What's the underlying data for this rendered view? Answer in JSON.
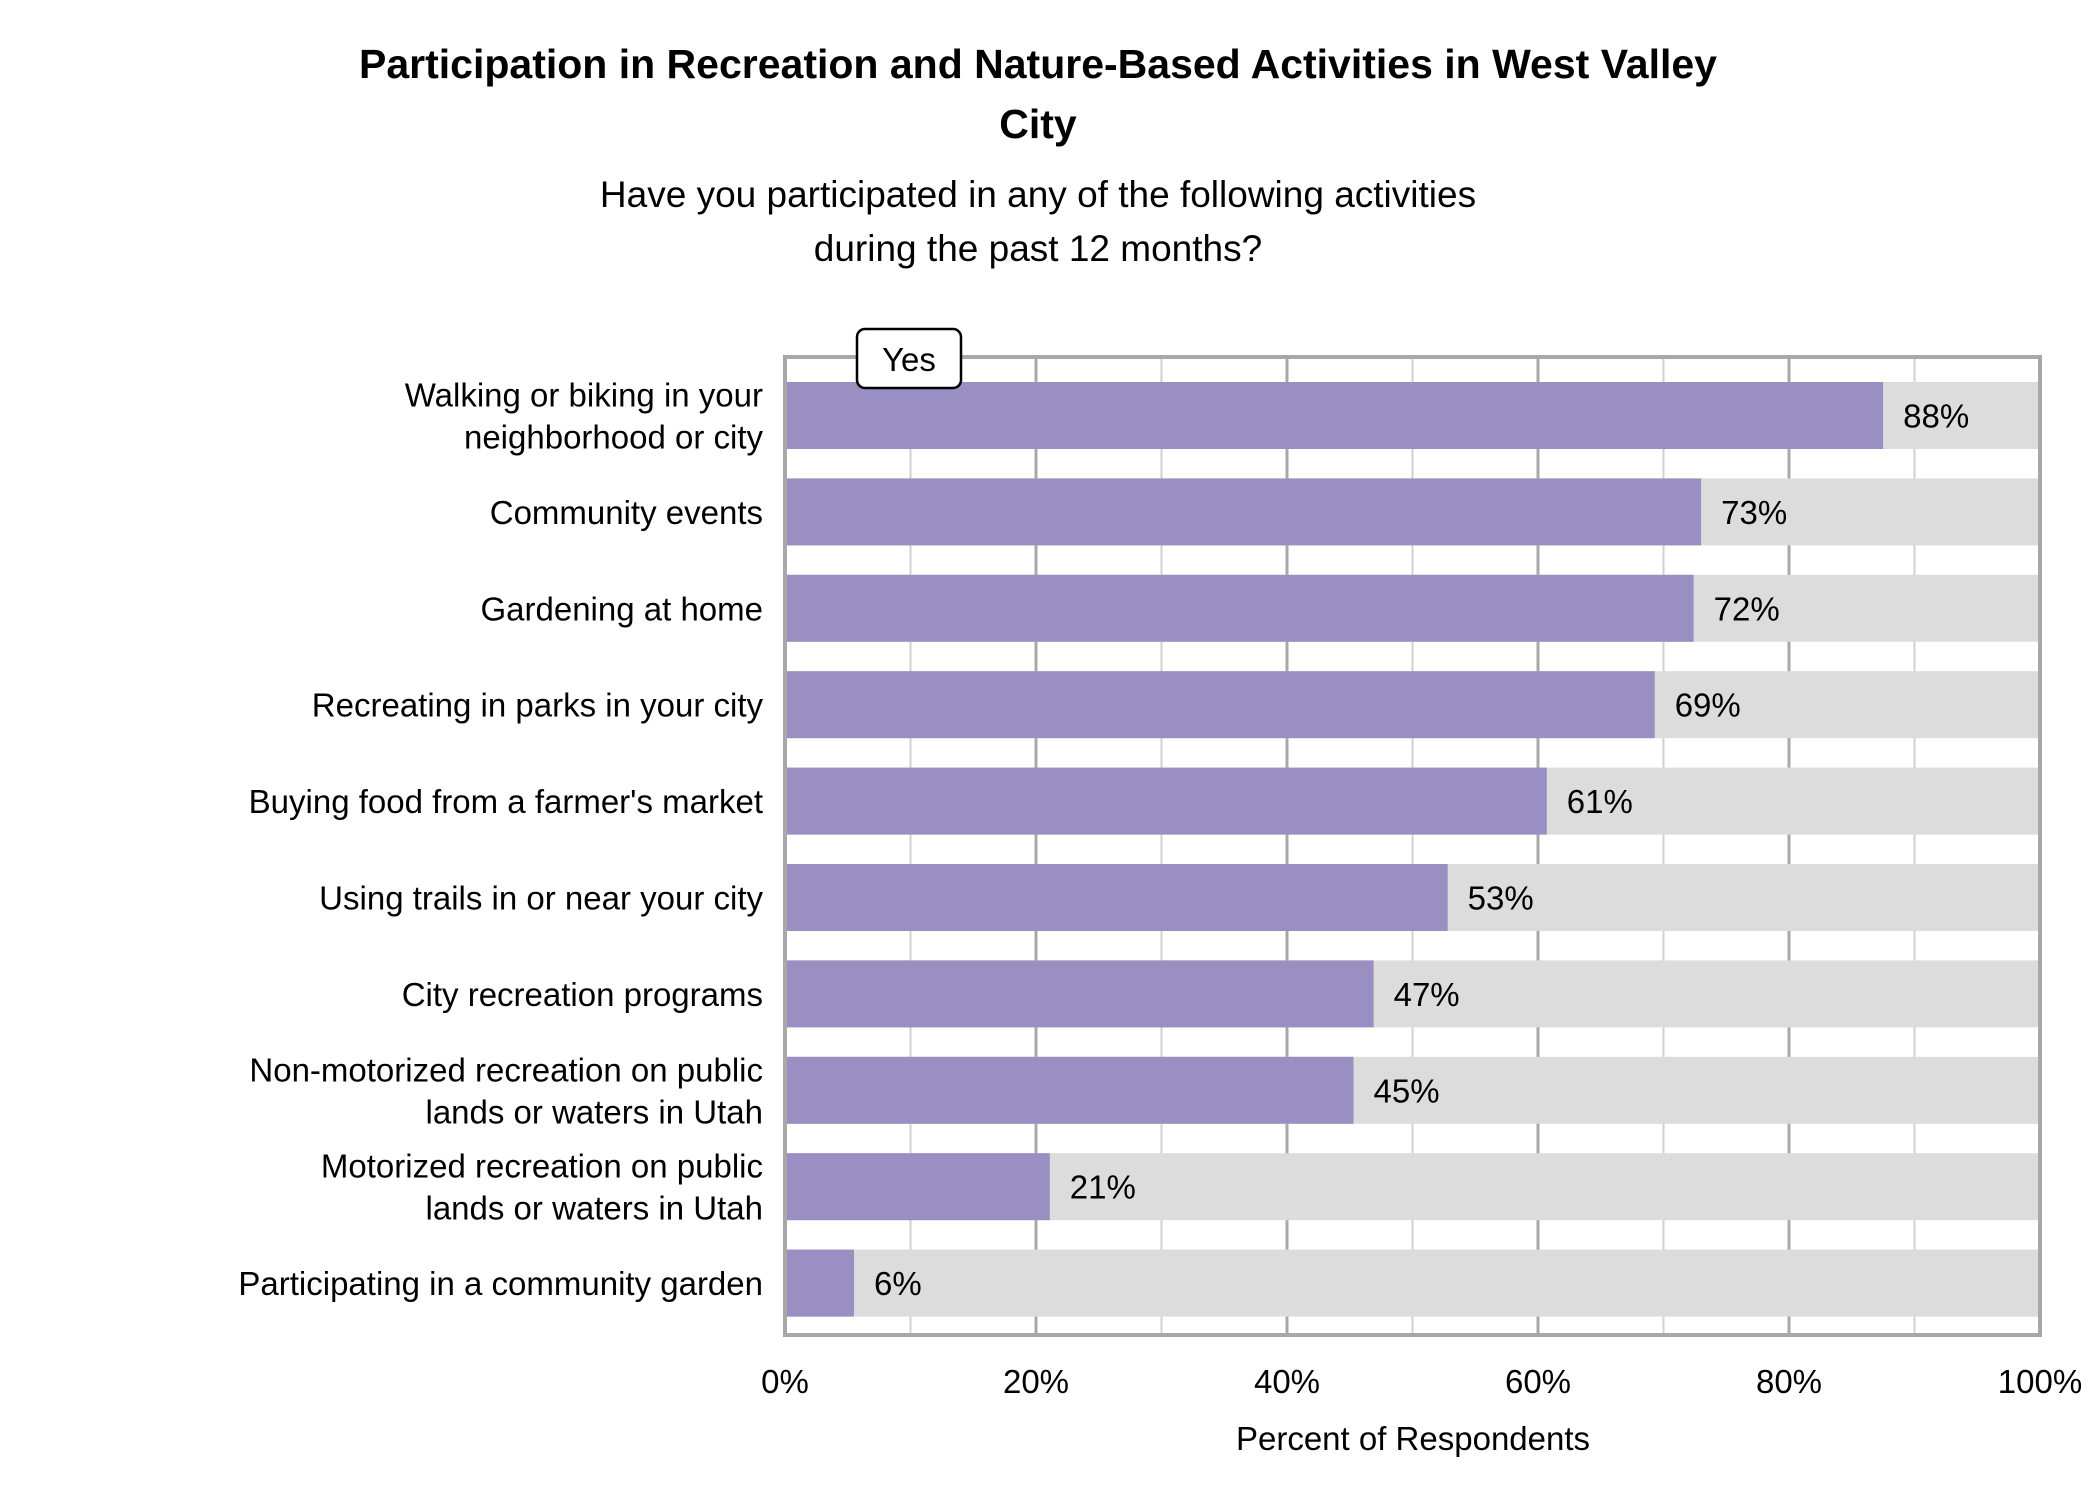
{
  "chart_data": {
    "type": "bar",
    "orientation": "horizontal",
    "stacked_background": true,
    "title": [
      "Participation in Recreation and Nature-Based Activities in West Valley",
      "City"
    ],
    "subtitle": [
      "Have you participated in any of the following activities",
      "during the past 12 months?"
    ],
    "xlabel": "Percent of Respondents",
    "ylabel": "",
    "xlim": [
      0,
      100
    ],
    "x_ticks": [
      "0%",
      "20%",
      "40%",
      "60%",
      "80%",
      "100%"
    ],
    "grid": true,
    "legend": {
      "placement": "top-left",
      "entries": [
        "Yes"
      ]
    },
    "colors": {
      "yes": "#998fc3",
      "remainder": "#dcdcdc",
      "grid_major": "#a8a8a8",
      "grid_minor": "#d0d0d0"
    },
    "categories": [
      [
        "Walking or biking in your",
        "neighborhood or city"
      ],
      [
        "Community events"
      ],
      [
        "Gardening at home"
      ],
      [
        "Recreating in parks in your city"
      ],
      [
        "Buying food from a farmer's market"
      ],
      [
        "Using trails in or near your city"
      ],
      [
        "City recreation programs"
      ],
      [
        "Non-motorized recreation on public",
        "lands or waters in Utah"
      ],
      [
        "Motorized recreation on public",
        "lands or waters in Utah"
      ],
      [
        "Participating in a community garden"
      ]
    ],
    "series": [
      {
        "name": "Yes",
        "values": [
          87.5,
          73.0,
          72.4,
          69.3,
          60.7,
          52.8,
          46.9,
          45.3,
          21.1,
          5.5
        ]
      }
    ],
    "data_labels": [
      "88%",
      "73%",
      "72%",
      "69%",
      "61%",
      "53%",
      "47%",
      "45%",
      "21%",
      "6%"
    ]
  }
}
